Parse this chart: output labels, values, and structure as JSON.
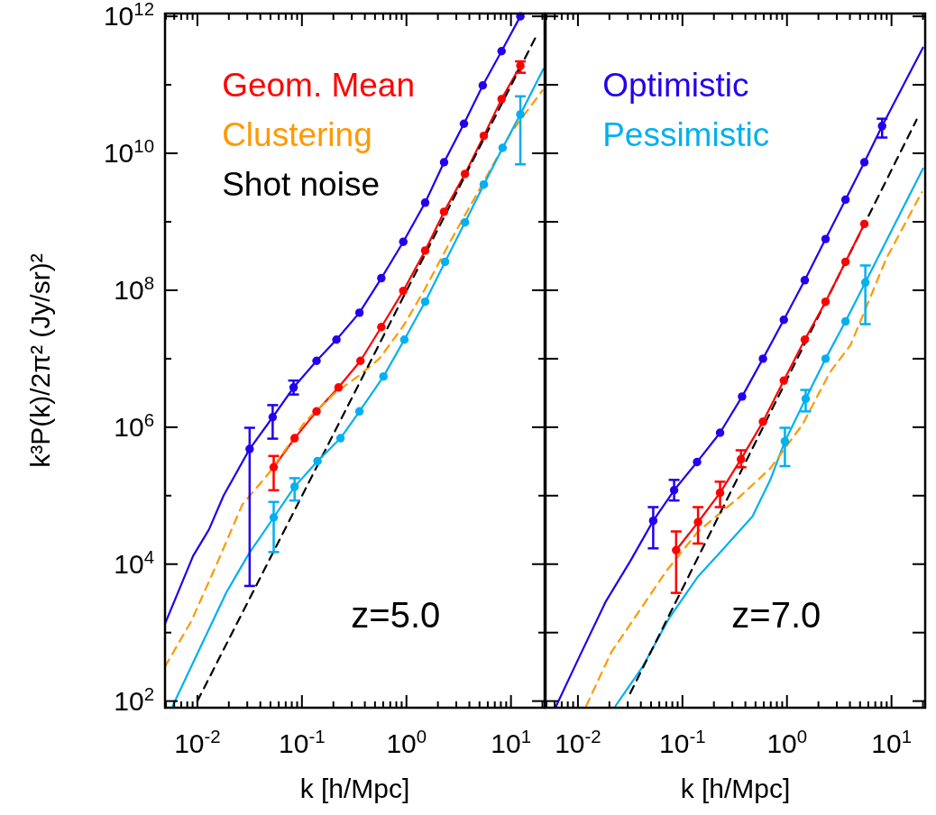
{
  "chart_data": [
    {
      "type": "line",
      "xlabel": "k [h/Mpc]",
      "ylabel": "k³P(k)/2π² (Jy/sr)²",
      "log": "xy",
      "legend": "top left",
      "annotations": [
        "z=5.0"
      ],
      "xlim": [
        0.0049,
        21
      ],
      "ylim": [
        80,
        1100000000000.0
      ],
      "xticks": [
        {
          "value": 0.005,
          "label": null
        },
        {
          "value": 0.006,
          "label": null
        },
        {
          "value": 0.007,
          "label": null
        },
        {
          "value": 0.008,
          "label": null
        },
        {
          "value": 0.009,
          "label": null
        },
        {
          "value": 0.01,
          "label": "10$^{-2}$"
        },
        {
          "value": 0.02,
          "label": null
        },
        {
          "value": 0.03,
          "label": null
        },
        {
          "value": 0.04,
          "label": null
        },
        {
          "value": 0.05,
          "label": null
        },
        {
          "value": 0.06,
          "label": null
        },
        {
          "value": 0.07,
          "label": null
        },
        {
          "value": 0.08,
          "label": null
        },
        {
          "value": 0.09,
          "label": null
        },
        {
          "value": 0.1,
          "label": "10$^{-1}$"
        },
        {
          "value": 0.2,
          "label": null
        },
        {
          "value": 0.3,
          "label": null
        },
        {
          "value": 0.4,
          "label": null
        },
        {
          "value": 0.5,
          "label": null
        },
        {
          "value": 0.6,
          "label": null
        },
        {
          "value": 0.7,
          "label": null
        },
        {
          "value": 0.8,
          "label": null
        },
        {
          "value": 0.9,
          "label": null
        },
        {
          "value": 1,
          "label": "10$^{0}$"
        },
        {
          "value": 2,
          "label": null
        },
        {
          "value": 3,
          "label": null
        },
        {
          "value": 4,
          "label": null
        },
        {
          "value": 5,
          "label": null
        },
        {
          "value": 6,
          "label": null
        },
        {
          "value": 7,
          "label": null
        },
        {
          "value": 8,
          "label": null
        },
        {
          "value": 9,
          "label": null
        },
        {
          "value": 10,
          "label": "10$^{1}$"
        },
        {
          "value": 20,
          "label": null
        }
      ],
      "yticks": [
        {
          "value": 100,
          "label": "10$^{2}$"
        },
        {
          "value": 1000,
          "label": null
        },
        {
          "value": 10000,
          "label": "10$^{4}$"
        },
        {
          "value": 100000,
          "label": null
        },
        {
          "value": 1000000,
          "label": "10$^{6}$"
        },
        {
          "value": 10000000,
          "label": null
        },
        {
          "value": 100000000,
          "label": "10$^{8}$"
        },
        {
          "value": 1000000000,
          "label": null
        },
        {
          "value": 10000000000,
          "label": "10$^{10}$"
        },
        {
          "value": 100000000000,
          "label": null
        },
        {
          "value": 1000000000000,
          "label": "10$^{12}$"
        }
      ],
      "series": [
        {
          "type": "line",
          "marker": "none",
          "line_style": "solid",
          "name": "Geom. Mean",
          "color": "#ff0000",
          "x": [
            0.0537,
            0.0851,
            0.138,
            0.224,
            0.363,
            0.575,
            0.933,
            1.51,
            2.29,
            3.63,
            5.5,
            8.13,
            12.3
          ],
          "values": [
            260000,
            690000,
            1700000,
            3800000,
            9300000,
            29000000,
            98000000,
            380000000,
            1400000000,
            5000000000,
            18000000000,
            62000000000,
            190000000000
          ]
        },
        {
          "type": "line",
          "marker": "none",
          "line_style": "dashed",
          "name": "Clustering",
          "color": "#ff9900",
          "x": [
            0.0049,
            0.0087,
            0.0148,
            0.0269,
            0.0479,
            0.107,
            0.204,
            0.347,
            0.55,
            0.933,
            1.48,
            2.63,
            5.13,
            10,
            20
          ],
          "values": [
            320,
            1450,
            8900,
            74000,
            210000,
            1200000,
            3100000,
            5600000,
            10000000,
            30000000,
            100000000,
            520000000,
            3200000000,
            20000000000,
            83000000000
          ]
        },
        {
          "type": "line",
          "marker": "none",
          "line_style": "dashed",
          "name": "Shot noise",
          "color": "#000000",
          "x": [
            0.01,
            17.4
          ],
          "values": [
            100,
            510000000000
          ]
        },
        {
          "type": "line",
          "marker": "none",
          "line_style": "solid",
          "color": "#00b0f0",
          "x": [
            0.0058,
            0.0105,
            0.019,
            0.0309,
            0.0537,
            0.0851,
            0.141,
            0.234,
            0.355,
            0.603,
            0.955,
            1.51,
            2.34,
            3.63,
            5.5,
            8.32,
            12.3,
            20.4
          ],
          "values": [
            85,
            580,
            3900,
            14000,
            48000,
            135000,
            320000,
            690000,
            1700000,
            5500000,
            19000000,
            68000000,
            260000000,
            980000000,
            3500000000,
            12000000000,
            37000000000,
            170000000000
          ]
        },
        {
          "type": "scatter",
          "marker": "circle",
          "color": "#00b0f0",
          "x": [
            0.0537,
            0.0851,
            0.141,
            0.234,
            0.355,
            0.603,
            0.955,
            1.51,
            2.34,
            3.63,
            5.5,
            8.32,
            12.3
          ],
          "values": [
            48000,
            135000,
            320000,
            690000,
            1700000,
            5500000,
            19000000,
            68000000,
            260000000,
            980000000,
            3500000000,
            12000000000,
            37000000000
          ],
          "errors": [
            [
              15000,
              81000
            ],
            [
              85000,
              180000
            ],
            null,
            null,
            null,
            null,
            null,
            null,
            null,
            null,
            null,
            null,
            [
              6900000000,
              68000000000
            ]
          ]
        },
        {
          "type": "scatter",
          "marker": "circle",
          "color": "#ff0000",
          "x": [
            0.0537,
            0.0851,
            0.138,
            0.224,
            0.363,
            0.575,
            0.933,
            1.51,
            2.29,
            3.63,
            5.5,
            8.13,
            12.3
          ],
          "values": [
            260000,
            690000,
            1700000,
            3800000,
            9300000,
            29000000,
            98000000,
            380000000,
            1400000000,
            5000000000,
            18000000000,
            62000000000,
            190000000000
          ],
          "errors": [
            [
              120000,
              380000
            ],
            null,
            null,
            null,
            null,
            null,
            null,
            null,
            null,
            null,
            null,
            null,
            [
              150000000000,
              220000000000
            ]
          ]
        },
        {
          "type": "line",
          "marker": "none",
          "line_style": "solid",
          "color": "#2200ee",
          "x": [
            0.0049,
            0.0091,
            0.0129,
            0.0178,
            0.0316,
            0.0525,
            0.0832,
            0.138,
            0.214,
            0.355,
            0.575,
            0.933,
            1.51,
            2.29,
            3.55,
            5.37,
            8.13,
            12.3
          ],
          "values": [
            1350,
            13200,
            32000,
            100000,
            480000,
            1400000,
            3800000,
            9300000,
            19000000,
            47000000,
            150000000,
            510000000,
            1900000000,
            7400000000,
            27000000000,
            98000000000,
            310000000000,
            1000000000000
          ]
        },
        {
          "type": "scatter",
          "marker": "circle",
          "color": "#2200ee",
          "x": [
            0.0316,
            0.0525,
            0.0832,
            0.138,
            0.214,
            0.355,
            0.575,
            0.933,
            1.51,
            2.29,
            3.55,
            5.37,
            8.13,
            12.3
          ],
          "values": [
            480000,
            1400000,
            3800000,
            9300000,
            19000000,
            47000000,
            150000000,
            510000000,
            1900000000,
            7400000000,
            27000000000,
            98000000000,
            310000000000,
            1000000000000
          ],
          "errors": [
            [
              4800,
              980000
            ],
            [
              680000,
              2100000
            ],
            [
              3000000,
              4800000
            ],
            null,
            null,
            null,
            null,
            null,
            null,
            null,
            null,
            null,
            null,
            null
          ]
        }
      ]
    },
    {
      "type": "line",
      "xlabel": "k [h/Mpc]",
      "log": "xy",
      "legend": "top left",
      "annotations": [
        "z=7.0"
      ],
      "xlim": [
        0.0049,
        21
      ],
      "ylim": [
        80,
        1100000000000.0
      ],
      "xticks": [
        {
          "value": 0.005,
          "label": null
        },
        {
          "value": 0.006,
          "label": null
        },
        {
          "value": 0.007,
          "label": null
        },
        {
          "value": 0.008,
          "label": null
        },
        {
          "value": 0.009,
          "label": null
        },
        {
          "value": 0.01,
          "label": "10$^{-2}$"
        },
        {
          "value": 0.02,
          "label": null
        },
        {
          "value": 0.03,
          "label": null
        },
        {
          "value": 0.04,
          "label": null
        },
        {
          "value": 0.05,
          "label": null
        },
        {
          "value": 0.06,
          "label": null
        },
        {
          "value": 0.07,
          "label": null
        },
        {
          "value": 0.08,
          "label": null
        },
        {
          "value": 0.09,
          "label": null
        },
        {
          "value": 0.1,
          "label": "10$^{-1}$"
        },
        {
          "value": 0.2,
          "label": null
        },
        {
          "value": 0.3,
          "label": null
        },
        {
          "value": 0.4,
          "label": null
        },
        {
          "value": 0.5,
          "label": null
        },
        {
          "value": 0.6,
          "label": null
        },
        {
          "value": 0.7,
          "label": null
        },
        {
          "value": 0.8,
          "label": null
        },
        {
          "value": 0.9,
          "label": null
        },
        {
          "value": 1,
          "label": "10$^{0}$"
        },
        {
          "value": 2,
          "label": null
        },
        {
          "value": 3,
          "label": null
        },
        {
          "value": 4,
          "label": null
        },
        {
          "value": 5,
          "label": null
        },
        {
          "value": 6,
          "label": null
        },
        {
          "value": 7,
          "label": null
        },
        {
          "value": 8,
          "label": null
        },
        {
          "value": 9,
          "label": null
        },
        {
          "value": 10,
          "label": "10$^{1}$"
        },
        {
          "value": 20,
          "label": null
        }
      ],
      "tick_labels": "x",
      "yticks": [
        100,
        1000,
        10000,
        100000,
        1000000,
        10000000,
        100000000,
        1000000000,
        10000000000,
        100000000000,
        1000000000000
      ],
      "series": [
        {
          "type": "line",
          "marker": "none",
          "line_style": "solid",
          "name": "Optimistic",
          "color": "#2200ee",
          "x": [
            0.0062,
            0.0105,
            0.0186,
            0.0316,
            0.0525,
            0.0832,
            0.138,
            0.229,
            0.372,
            0.589,
            0.933,
            1.48,
            2.34,
            3.63,
            5.5,
            8.13,
            20
          ],
          "values": [
            85,
            470,
            2900,
            11000,
            43000,
            120000,
            310000,
            830000,
            2800000,
            10000000,
            37000000,
            140000000,
            560000000,
            2100000000,
            7400000000,
            25000000000,
            350000000000
          ]
        },
        {
          "type": "line",
          "marker": "none",
          "line_style": "solid",
          "name": "Pessimistic",
          "color": "#00b0f0",
          "x": [
            0.0229,
            0.0417,
            0.0741,
            0.141,
            0.24,
            0.468,
            0.692,
            0.955,
            1.51,
            2.34,
            3.63,
            5.62,
            20
          ],
          "values": [
            85,
            320,
            1600,
            6600,
            16000,
            50000,
            170000,
            620000,
            2600000,
            10000000,
            35000000,
            130000000,
            6000000000
          ]
        },
        {
          "type": "line",
          "marker": "none",
          "line_style": "dashed",
          "color": "#ff9900",
          "x": [
            0.012,
            0.0209,
            0.0389,
            0.0708,
            0.141,
            0.339,
            0.692,
            1.41,
            2.57,
            4.07,
            8.91,
            19.5
          ],
          "values": [
            85,
            520,
            2100,
            8100,
            30000,
            91000,
            250000,
            1100000,
            6300000,
            16000000,
            290000000,
            2700000000
          ]
        },
        {
          "type": "line",
          "marker": "none",
          "line_style": "dashed",
          "color": "#000000",
          "x": [
            0.0316,
            17.4
          ],
          "values": [
            130,
            31000000000
          ]
        },
        {
          "type": "scatter",
          "marker": "circle",
          "color": "#00b0f0",
          "x": [
            0.955,
            1.51,
            2.34,
            3.63,
            5.62
          ],
          "values": [
            620000,
            2600000,
            10000000,
            35000000,
            130000000
          ],
          "errors": [
            [
              270000,
              980000
            ],
            [
              1700000,
              3500000
            ],
            null,
            null,
            [
              32000000,
              230000000
            ]
          ]
        },
        {
          "type": "line",
          "marker": "none",
          "line_style": "solid",
          "color": "#ff0000",
          "x": [
            0.087,
            0.141,
            0.229,
            0.363,
            0.589,
            0.933,
            1.48,
            2.34,
            3.63,
            5.5
          ],
          "values": [
            16000,
            41000,
            110000,
            340000,
            1200000,
            4800000,
            19000000,
            68000000,
            260000000,
            930000000
          ]
        },
        {
          "type": "scatter",
          "marker": "circle",
          "color": "#ff0000",
          "x": [
            0.087,
            0.141,
            0.229,
            0.363,
            0.589,
            0.933,
            1.48,
            2.34,
            3.63,
            5.5
          ],
          "values": [
            16000,
            41000,
            110000,
            340000,
            1200000,
            4800000,
            19000000,
            68000000,
            260000000,
            930000000
          ],
          "errors": [
            [
              3800,
              30000
            ],
            [
              20000,
              68000
            ],
            [
              68000,
              160000
            ],
            [
              260000,
              460000
            ],
            null,
            null,
            null,
            null,
            null,
            null
          ]
        },
        {
          "type": "scatter",
          "marker": "circle",
          "color": "#2200ee",
          "x": [
            0.0525,
            0.0832,
            0.138,
            0.229,
            0.372,
            0.589,
            0.933,
            1.48,
            2.34,
            3.63,
            5.5,
            8.13
          ],
          "values": [
            43000,
            120000,
            310000,
            830000,
            2800000,
            10000000,
            37000000,
            140000000,
            560000000,
            2100000000,
            7400000000,
            25000000000
          ],
          "errors": [
            [
              17000,
              68000
            ],
            [
              85000,
              170000
            ],
            null,
            null,
            null,
            null,
            null,
            null,
            null,
            null,
            null,
            [
              17000000000,
              32000000000
            ]
          ]
        }
      ]
    }
  ]
}
